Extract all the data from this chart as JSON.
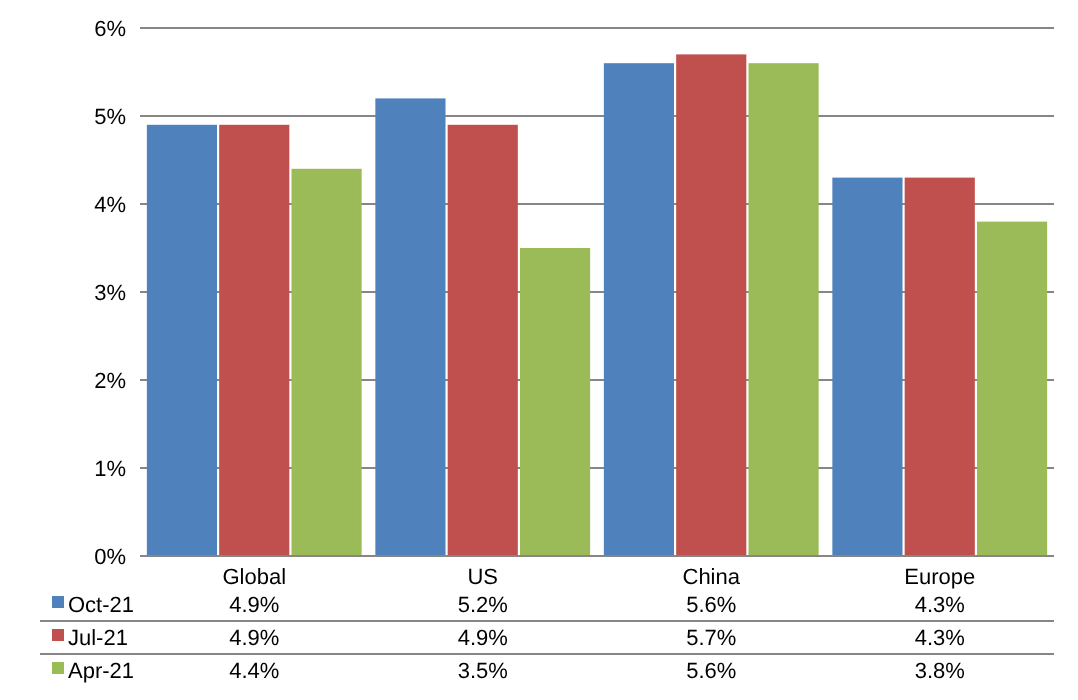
{
  "chart_data": {
    "type": "bar",
    "categories": [
      "Global",
      "US",
      "China",
      "Europe"
    ],
    "series": [
      {
        "name": "Oct-21",
        "color": "#4f81bd",
        "values": [
          4.9,
          5.2,
          5.6,
          4.3
        ],
        "value_labels": [
          "4.9%",
          "5.2%",
          "5.6%",
          "4.3%"
        ]
      },
      {
        "name": "Jul-21",
        "color": "#c0504d",
        "values": [
          4.9,
          4.9,
          5.7,
          4.3
        ],
        "value_labels": [
          "4.9%",
          "4.9%",
          "5.7%",
          "4.3%"
        ]
      },
      {
        "name": "Apr-21",
        "color": "#9bbb59",
        "values": [
          4.4,
          3.5,
          5.6,
          3.8
        ],
        "value_labels": [
          "4.4%",
          "3.5%",
          "5.6%",
          "3.8%"
        ]
      }
    ],
    "ylim": [
      0,
      6
    ],
    "yticks": [
      {
        "value": 0,
        "label": "0%"
      },
      {
        "value": 1,
        "label": "1%"
      },
      {
        "value": 2,
        "label": "2%"
      },
      {
        "value": 3,
        "label": "3%"
      },
      {
        "value": 4,
        "label": "4%"
      },
      {
        "value": 5,
        "label": "5%"
      },
      {
        "value": 6,
        "label": "6%"
      }
    ],
    "grid": "y",
    "legend": "bottom"
  }
}
